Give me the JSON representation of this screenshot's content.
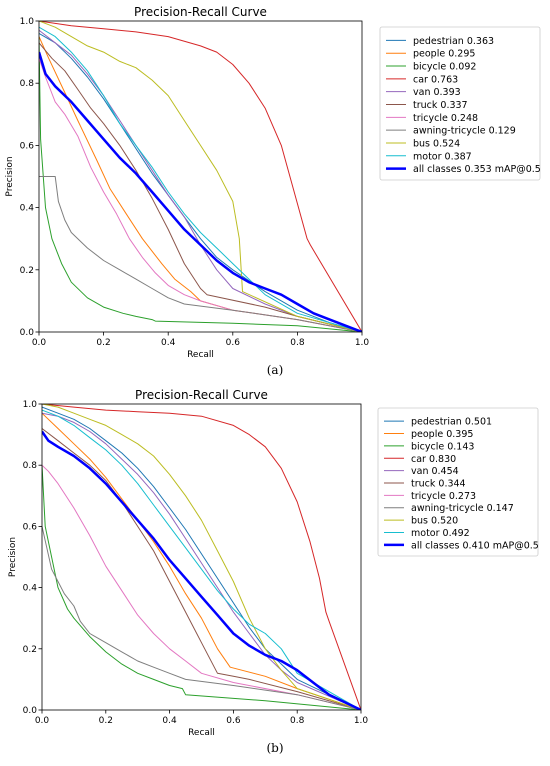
{
  "captions": [
    "(a)",
    "(b)"
  ],
  "chart_data": [
    {
      "type": "line",
      "title": "Precision-Recall Curve",
      "xlabel": "Recall",
      "ylabel": "Precision",
      "xlim": [
        0,
        1
      ],
      "ylim": [
        0,
        1
      ],
      "xticks": [
        "0.0",
        "0.2",
        "0.4",
        "0.6",
        "0.8",
        "1.0"
      ],
      "yticks": [
        "0.0",
        "0.2",
        "0.4",
        "0.6",
        "0.8",
        "1.0"
      ],
      "legend_position": "outside-right",
      "series": [
        {
          "name": "pedestrian 0.363",
          "color": "#1f77b4",
          "lw": 1,
          "x": [
            0,
            0.05,
            0.1,
            0.15,
            0.2,
            0.25,
            0.3,
            0.35,
            0.4,
            0.45,
            0.5,
            0.55,
            0.6,
            0.7,
            0.8,
            0.9,
            1.0
          ],
          "y": [
            0.96,
            0.93,
            0.88,
            0.82,
            0.75,
            0.67,
            0.59,
            0.51,
            0.44,
            0.37,
            0.3,
            0.24,
            0.2,
            0.13,
            0.07,
            0.03,
            0
          ]
        },
        {
          "name": "people 0.295",
          "color": "#ff7f0e",
          "lw": 1,
          "x": [
            0,
            0.03,
            0.08,
            0.12,
            0.18,
            0.22,
            0.27,
            0.32,
            0.38,
            0.42,
            0.47,
            0.5,
            0.6,
            0.8,
            1.0
          ],
          "y": [
            0.95,
            0.88,
            0.77,
            0.68,
            0.55,
            0.46,
            0.38,
            0.3,
            0.22,
            0.17,
            0.13,
            0.1,
            0.07,
            0.04,
            0
          ]
        },
        {
          "name": "bicycle 0.092",
          "color": "#2ca02c",
          "lw": 1,
          "x": [
            0,
            0.005,
            0.02,
            0.04,
            0.07,
            0.1,
            0.15,
            0.2,
            0.26,
            0.3,
            0.35,
            0.36,
            0.6,
            0.8,
            1.0
          ],
          "y": [
            0.95,
            0.62,
            0.4,
            0.3,
            0.22,
            0.16,
            0.11,
            0.08,
            0.06,
            0.05,
            0.04,
            0.035,
            0.028,
            0.02,
            0
          ]
        },
        {
          "name": "car 0.763",
          "color": "#d62728",
          "lw": 1,
          "x": [
            0,
            0.1,
            0.2,
            0.3,
            0.4,
            0.5,
            0.55,
            0.6,
            0.65,
            0.7,
            0.75,
            0.79,
            0.83,
            0.84,
            1.0
          ],
          "y": [
            1.0,
            0.985,
            0.975,
            0.965,
            0.95,
            0.92,
            0.9,
            0.86,
            0.8,
            0.72,
            0.6,
            0.45,
            0.3,
            0.28,
            0
          ]
        },
        {
          "name": "van 0.393",
          "color": "#9467bd",
          "lw": 1,
          "x": [
            0,
            0.05,
            0.1,
            0.15,
            0.2,
            0.25,
            0.3,
            0.35,
            0.4,
            0.45,
            0.5,
            0.55,
            0.6,
            0.7,
            0.8,
            1.0
          ],
          "y": [
            0.97,
            0.93,
            0.89,
            0.83,
            0.76,
            0.68,
            0.6,
            0.52,
            0.44,
            0.37,
            0.28,
            0.2,
            0.14,
            0.09,
            0.05,
            0
          ]
        },
        {
          "name": "truck 0.337",
          "color": "#8c564b",
          "lw": 1,
          "x": [
            0,
            0.04,
            0.08,
            0.12,
            0.16,
            0.2,
            0.25,
            0.3,
            0.35,
            0.4,
            0.45,
            0.5,
            0.52,
            0.7,
            0.8,
            1.0
          ],
          "y": [
            0.93,
            0.88,
            0.84,
            0.78,
            0.72,
            0.67,
            0.6,
            0.52,
            0.43,
            0.33,
            0.22,
            0.14,
            0.12,
            0.08,
            0.05,
            0
          ]
        },
        {
          "name": "tricycle 0.248",
          "color": "#e377c2",
          "lw": 1,
          "x": [
            0,
            0.02,
            0.05,
            0.08,
            0.12,
            0.16,
            0.2,
            0.24,
            0.28,
            0.32,
            0.36,
            0.4,
            0.45,
            0.5,
            0.6,
            0.8,
            1.0
          ],
          "y": [
            0.88,
            0.82,
            0.74,
            0.7,
            0.63,
            0.53,
            0.45,
            0.38,
            0.3,
            0.24,
            0.19,
            0.15,
            0.12,
            0.1,
            0.07,
            0.04,
            0
          ]
        },
        {
          "name": "awning-tricycle 0.129",
          "color": "#7f7f7f",
          "lw": 1,
          "x": [
            0,
            0.05,
            0.06,
            0.08,
            0.1,
            0.15,
            0.2,
            0.25,
            0.3,
            0.35,
            0.4,
            0.45,
            0.6,
            0.8,
            1.0
          ],
          "y": [
            0.5,
            0.5,
            0.42,
            0.36,
            0.32,
            0.27,
            0.23,
            0.2,
            0.17,
            0.14,
            0.11,
            0.09,
            0.07,
            0.04,
            0
          ]
        },
        {
          "name": "bus 0.524",
          "color": "#bcbd22",
          "lw": 1,
          "x": [
            0,
            0.05,
            0.1,
            0.15,
            0.2,
            0.25,
            0.3,
            0.35,
            0.4,
            0.45,
            0.5,
            0.55,
            0.6,
            0.62,
            0.63,
            0.8,
            1.0
          ],
          "y": [
            1.0,
            0.98,
            0.95,
            0.92,
            0.9,
            0.87,
            0.85,
            0.81,
            0.76,
            0.68,
            0.6,
            0.52,
            0.42,
            0.3,
            0.13,
            0.05,
            0
          ]
        },
        {
          "name": "motor 0.387",
          "color": "#17becf",
          "lw": 1,
          "x": [
            0,
            0.05,
            0.1,
            0.15,
            0.2,
            0.25,
            0.3,
            0.35,
            0.4,
            0.45,
            0.5,
            0.55,
            0.6,
            0.7,
            0.8,
            1.0
          ],
          "y": [
            0.98,
            0.95,
            0.9,
            0.84,
            0.76,
            0.67,
            0.6,
            0.53,
            0.45,
            0.38,
            0.32,
            0.27,
            0.22,
            0.12,
            0.06,
            0
          ]
        },
        {
          "name": "all classes 0.353 mAP@0.5",
          "color": "#0000ff",
          "lw": 2.5,
          "x": [
            0,
            0.02,
            0.05,
            0.1,
            0.15,
            0.2,
            0.25,
            0.3,
            0.35,
            0.4,
            0.45,
            0.5,
            0.55,
            0.6,
            0.65,
            0.7,
            0.75,
            0.8,
            0.85,
            0.9,
            1.0
          ],
          "y": [
            0.9,
            0.83,
            0.79,
            0.74,
            0.68,
            0.62,
            0.56,
            0.51,
            0.45,
            0.39,
            0.33,
            0.28,
            0.23,
            0.19,
            0.16,
            0.14,
            0.12,
            0.09,
            0.06,
            0.04,
            0
          ]
        }
      ]
    },
    {
      "type": "line",
      "title": "Precision-Recall Curve",
      "xlabel": "Recall",
      "ylabel": "Precision",
      "xlim": [
        0,
        1
      ],
      "ylim": [
        0,
        1
      ],
      "xticks": [
        "0.0",
        "0.2",
        "0.4",
        "0.6",
        "0.8",
        "1.0"
      ],
      "yticks": [
        "0.0",
        "0.2",
        "0.4",
        "0.6",
        "0.8",
        "1.0"
      ],
      "legend_position": "outside-right",
      "series": [
        {
          "name": "pedestrian 0.501",
          "color": "#1f77b4",
          "lw": 1,
          "x": [
            0,
            0.05,
            0.1,
            0.15,
            0.2,
            0.25,
            0.3,
            0.35,
            0.4,
            0.45,
            0.5,
            0.55,
            0.6,
            0.65,
            0.7,
            0.75,
            0.8,
            1.0
          ],
          "y": [
            0.99,
            0.97,
            0.95,
            0.92,
            0.88,
            0.84,
            0.79,
            0.73,
            0.66,
            0.59,
            0.51,
            0.43,
            0.35,
            0.27,
            0.2,
            0.15,
            0.1,
            0
          ]
        },
        {
          "name": "people 0.395",
          "color": "#ff7f0e",
          "lw": 1,
          "x": [
            0,
            0.05,
            0.1,
            0.15,
            0.2,
            0.25,
            0.3,
            0.35,
            0.4,
            0.45,
            0.5,
            0.55,
            0.59,
            0.7,
            0.8,
            1.0
          ],
          "y": [
            0.97,
            0.92,
            0.87,
            0.82,
            0.76,
            0.69,
            0.62,
            0.55,
            0.47,
            0.38,
            0.3,
            0.2,
            0.14,
            0.11,
            0.07,
            0
          ]
        },
        {
          "name": "bicycle 0.143",
          "color": "#2ca02c",
          "lw": 1,
          "x": [
            0,
            0.01,
            0.03,
            0.05,
            0.08,
            0.1,
            0.15,
            0.2,
            0.25,
            0.3,
            0.35,
            0.4,
            0.44,
            0.45,
            0.7,
            1.0
          ],
          "y": [
            0.8,
            0.6,
            0.5,
            0.4,
            0.33,
            0.3,
            0.24,
            0.19,
            0.15,
            0.12,
            0.1,
            0.08,
            0.07,
            0.05,
            0.03,
            0
          ]
        },
        {
          "name": "car 0.830",
          "color": "#d62728",
          "lw": 1,
          "x": [
            0,
            0.1,
            0.2,
            0.3,
            0.4,
            0.5,
            0.6,
            0.65,
            0.7,
            0.75,
            0.8,
            0.84,
            0.87,
            0.89,
            0.9,
            1.0
          ],
          "y": [
            1.0,
            0.99,
            0.98,
            0.975,
            0.97,
            0.96,
            0.93,
            0.9,
            0.86,
            0.79,
            0.68,
            0.55,
            0.43,
            0.32,
            0.29,
            0
          ]
        },
        {
          "name": "van 0.454",
          "color": "#9467bd",
          "lw": 1,
          "x": [
            0,
            0.05,
            0.1,
            0.15,
            0.2,
            0.25,
            0.3,
            0.35,
            0.4,
            0.45,
            0.5,
            0.55,
            0.6,
            0.65,
            0.7,
            0.75,
            0.8,
            1.0
          ],
          "y": [
            0.97,
            0.96,
            0.94,
            0.91,
            0.87,
            0.82,
            0.77,
            0.71,
            0.64,
            0.56,
            0.48,
            0.4,
            0.32,
            0.25,
            0.18,
            0.13,
            0.09,
            0
          ]
        },
        {
          "name": "truck 0.344",
          "color": "#8c564b",
          "lw": 1,
          "x": [
            0,
            0.05,
            0.1,
            0.15,
            0.2,
            0.25,
            0.3,
            0.35,
            0.4,
            0.45,
            0.5,
            0.55,
            0.6,
            0.65,
            0.8,
            1.0
          ],
          "y": [
            0.92,
            0.88,
            0.84,
            0.8,
            0.75,
            0.68,
            0.6,
            0.52,
            0.42,
            0.32,
            0.22,
            0.12,
            0.11,
            0.1,
            0.06,
            0
          ]
        },
        {
          "name": "tricycle 0.273",
          "color": "#e377c2",
          "lw": 1,
          "x": [
            0,
            0.02,
            0.05,
            0.1,
            0.15,
            0.2,
            0.25,
            0.3,
            0.35,
            0.4,
            0.45,
            0.5,
            0.6,
            0.8,
            1.0
          ],
          "y": [
            0.8,
            0.78,
            0.74,
            0.66,
            0.57,
            0.47,
            0.39,
            0.31,
            0.25,
            0.2,
            0.16,
            0.12,
            0.09,
            0.05,
            0
          ]
        },
        {
          "name": "awning-tricycle 0.147",
          "color": "#7f7f7f",
          "lw": 1,
          "x": [
            0,
            0.03,
            0.05,
            0.07,
            0.1,
            0.12,
            0.15,
            0.2,
            0.25,
            0.3,
            0.35,
            0.4,
            0.45,
            0.6,
            0.8,
            1.0
          ],
          "y": [
            0.6,
            0.46,
            0.42,
            0.38,
            0.34,
            0.29,
            0.25,
            0.22,
            0.19,
            0.16,
            0.14,
            0.12,
            0.1,
            0.08,
            0.05,
            0
          ]
        },
        {
          "name": "bus 0.520",
          "color": "#bcbd22",
          "lw": 1,
          "x": [
            0,
            0.05,
            0.1,
            0.15,
            0.2,
            0.25,
            0.3,
            0.35,
            0.4,
            0.45,
            0.5,
            0.55,
            0.6,
            0.65,
            0.7,
            0.75,
            0.8,
            1.0
          ],
          "y": [
            1.0,
            0.99,
            0.97,
            0.95,
            0.93,
            0.9,
            0.87,
            0.83,
            0.77,
            0.7,
            0.62,
            0.52,
            0.42,
            0.3,
            0.2,
            0.13,
            0.07,
            0
          ]
        },
        {
          "name": "motor 0.492",
          "color": "#17becf",
          "lw": 1,
          "x": [
            0,
            0.05,
            0.1,
            0.15,
            0.2,
            0.25,
            0.3,
            0.35,
            0.4,
            0.45,
            0.5,
            0.55,
            0.6,
            0.65,
            0.7,
            0.75,
            0.8,
            1.0
          ],
          "y": [
            0.98,
            0.96,
            0.93,
            0.89,
            0.85,
            0.8,
            0.74,
            0.67,
            0.6,
            0.53,
            0.46,
            0.39,
            0.33,
            0.28,
            0.25,
            0.2,
            0.12,
            0
          ]
        },
        {
          "name": "all classes 0.410 mAP@0.5",
          "color": "#0000ff",
          "lw": 2.5,
          "x": [
            0,
            0.02,
            0.05,
            0.1,
            0.15,
            0.2,
            0.25,
            0.3,
            0.35,
            0.4,
            0.45,
            0.5,
            0.55,
            0.6,
            0.65,
            0.7,
            0.75,
            0.8,
            0.85,
            0.9,
            1.0
          ],
          "y": [
            0.91,
            0.88,
            0.86,
            0.83,
            0.79,
            0.74,
            0.68,
            0.62,
            0.56,
            0.49,
            0.43,
            0.37,
            0.31,
            0.25,
            0.21,
            0.18,
            0.16,
            0.13,
            0.09,
            0.05,
            0
          ]
        }
      ]
    }
  ]
}
